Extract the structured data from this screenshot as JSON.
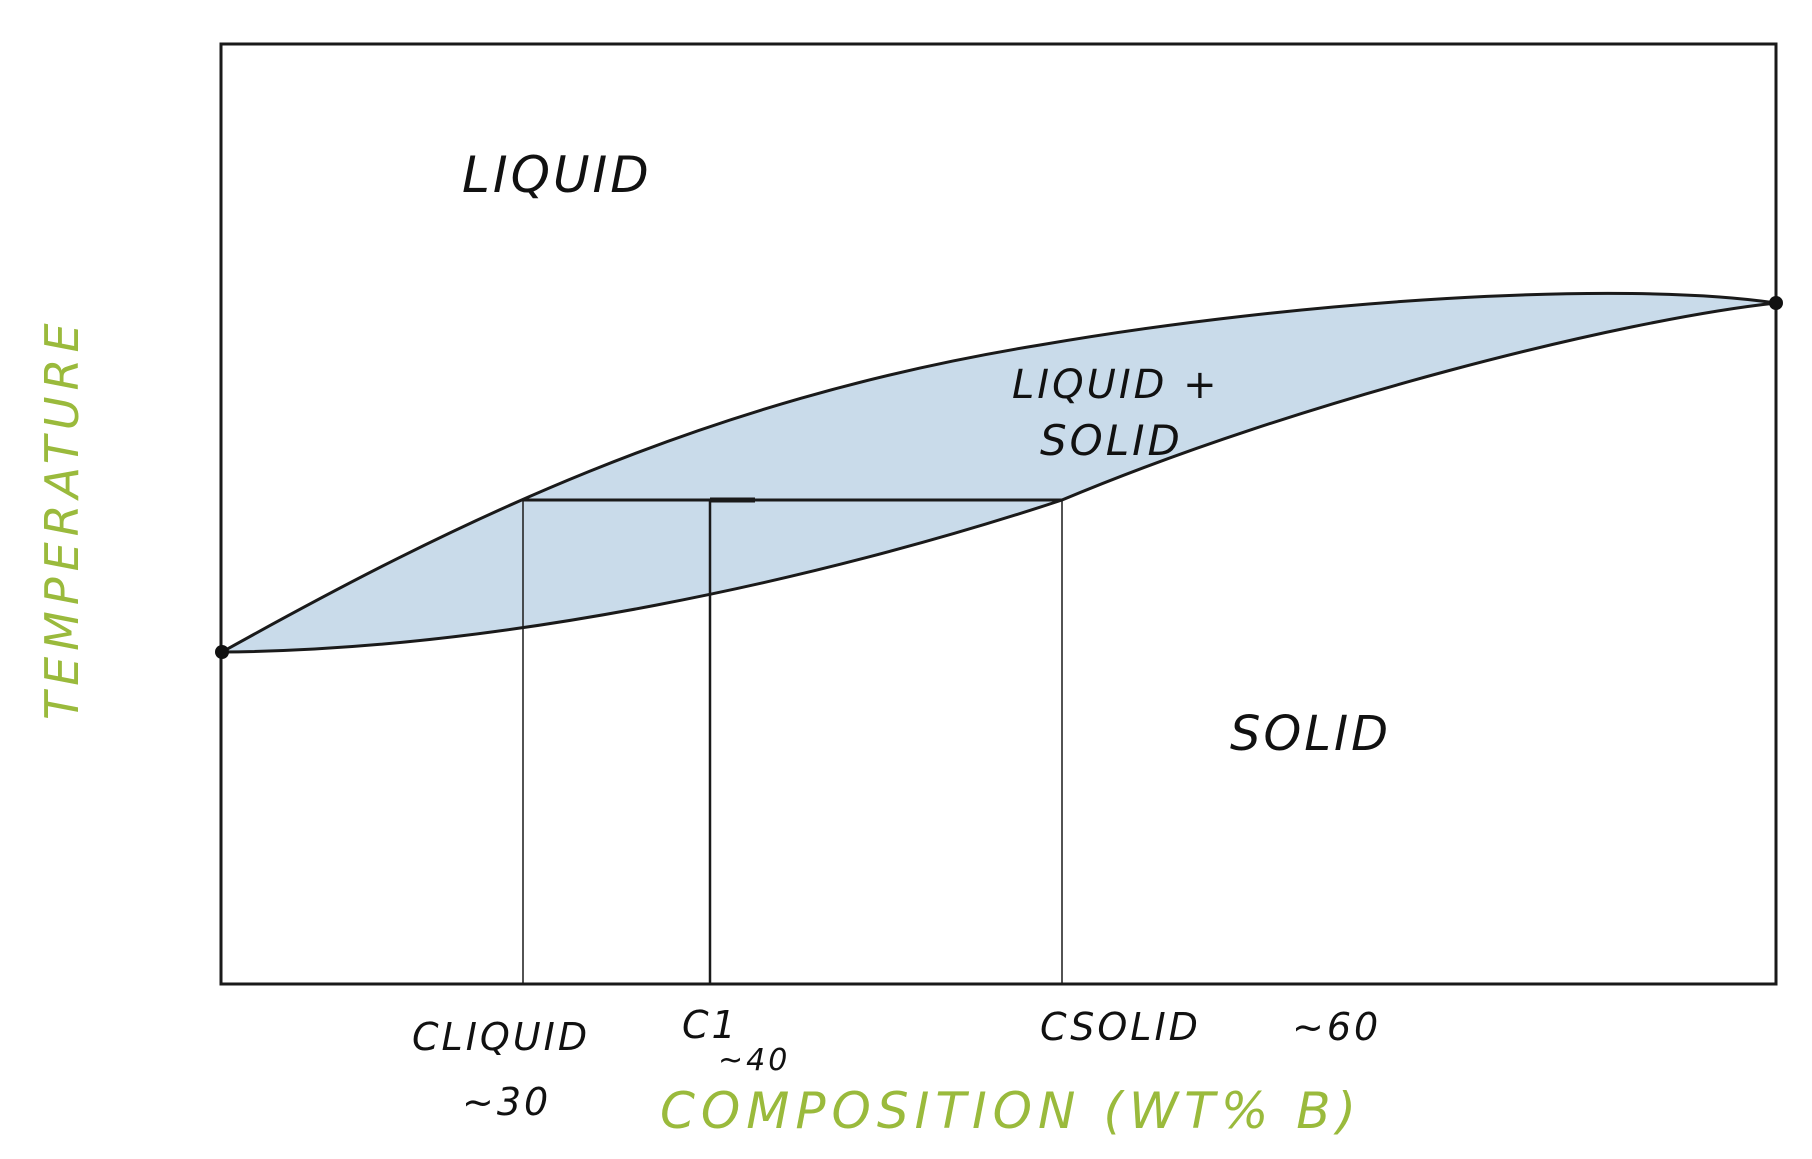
{
  "regions": {
    "liquid": "LIQUID",
    "two_phase_line1": "LIQUID +",
    "two_phase_line2": "SOLID",
    "solid": "SOLID"
  },
  "axes": {
    "x_title": "COMPOSITION (WT% B)",
    "y_title": "TEMPERATURE",
    "title_color": "#9aba3c"
  },
  "markers": {
    "c_liquid": {
      "label": "CLIQUID",
      "value_text": "~30"
    },
    "c_overall": {
      "label": "C1",
      "value_text": "~40"
    },
    "c_solid": {
      "label": "CSOLID",
      "value_text": "~60"
    }
  },
  "colors": {
    "two_phase_fill": "#c9dbea",
    "line": "#1a1a1a"
  }
}
